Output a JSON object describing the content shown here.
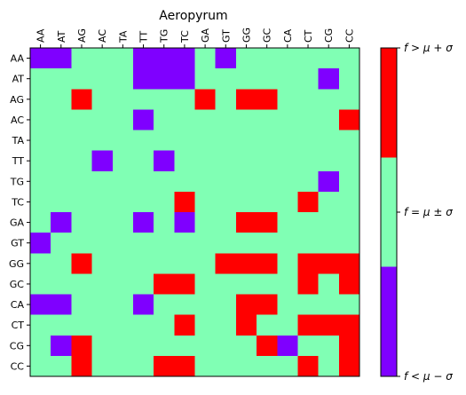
{
  "chart_data": {
    "type": "heatmap",
    "title": "Aeropyrum",
    "x_categories": [
      "AA",
      "AT",
      "AG",
      "AC",
      "TA",
      "TT",
      "TG",
      "TC",
      "GA",
      "GT",
      "GG",
      "GC",
      "CA",
      "CT",
      "CG",
      "CC"
    ],
    "y_categories": [
      "AA",
      "AT",
      "AG",
      "AC",
      "TA",
      "TT",
      "TG",
      "TC",
      "GA",
      "GT",
      "GG",
      "GC",
      "CA",
      "CT",
      "CG",
      "CC"
    ],
    "value_scale": {
      "-1": "f < mu - sigma",
      "0": "f = mu +/- sigma",
      "1": "f > mu + sigma"
    },
    "colors": {
      "-1": "#7f00ff",
      "0": "#80ffb4",
      "1": "#ff0000"
    },
    "matrix": [
      [
        -1,
        -1,
        0,
        0,
        0,
        -1,
        -1,
        -1,
        0,
        -1,
        0,
        0,
        0,
        0,
        0,
        0
      ],
      [
        0,
        0,
        0,
        0,
        0,
        -1,
        -1,
        -1,
        0,
        0,
        0,
        0,
        0,
        0,
        -1,
        0
      ],
      [
        0,
        0,
        1,
        0,
        0,
        0,
        0,
        0,
        1,
        0,
        1,
        1,
        0,
        0,
        0,
        0
      ],
      [
        0,
        0,
        0,
        0,
        0,
        -1,
        0,
        0,
        0,
        0,
        0,
        0,
        0,
        0,
        0,
        1
      ],
      [
        0,
        0,
        0,
        0,
        0,
        0,
        0,
        0,
        0,
        0,
        0,
        0,
        0,
        0,
        0,
        0
      ],
      [
        0,
        0,
        0,
        -1,
        0,
        0,
        -1,
        0,
        0,
        0,
        0,
        0,
        0,
        0,
        0,
        0
      ],
      [
        0,
        0,
        0,
        0,
        0,
        0,
        0,
        0,
        0,
        0,
        0,
        0,
        0,
        0,
        -1,
        0
      ],
      [
        0,
        0,
        0,
        0,
        0,
        0,
        0,
        1,
        0,
        0,
        0,
        0,
        0,
        1,
        0,
        0
      ],
      [
        0,
        -1,
        0,
        0,
        0,
        -1,
        0,
        -1,
        0,
        0,
        1,
        1,
        0,
        0,
        0,
        0
      ],
      [
        -1,
        0,
        0,
        0,
        0,
        0,
        0,
        0,
        0,
        0,
        0,
        0,
        0,
        0,
        0,
        0
      ],
      [
        0,
        0,
        1,
        0,
        0,
        0,
        0,
        0,
        0,
        1,
        1,
        1,
        0,
        1,
        1,
        1
      ],
      [
        0,
        0,
        0,
        0,
        0,
        0,
        1,
        1,
        0,
        0,
        0,
        0,
        0,
        1,
        0,
        1
      ],
      [
        -1,
        -1,
        0,
        0,
        0,
        -1,
        0,
        0,
        0,
        0,
        1,
        1,
        0,
        0,
        0,
        0
      ],
      [
        0,
        0,
        0,
        0,
        0,
        0,
        0,
        1,
        0,
        0,
        1,
        0,
        0,
        1,
        1,
        1
      ],
      [
        0,
        -1,
        1,
        0,
        0,
        0,
        0,
        0,
        0,
        0,
        0,
        1,
        -1,
        0,
        0,
        1
      ],
      [
        0,
        0,
        1,
        0,
        0,
        0,
        1,
        1,
        0,
        0,
        0,
        0,
        0,
        1,
        0,
        1
      ]
    ],
    "colorbar": {
      "ticks": [
        {
          "value": 1,
          "label": "f > μ + σ"
        },
        {
          "value": 0,
          "label": "f = μ ± σ"
        },
        {
          "value": -1,
          "label": "f < μ − σ"
        }
      ]
    }
  }
}
